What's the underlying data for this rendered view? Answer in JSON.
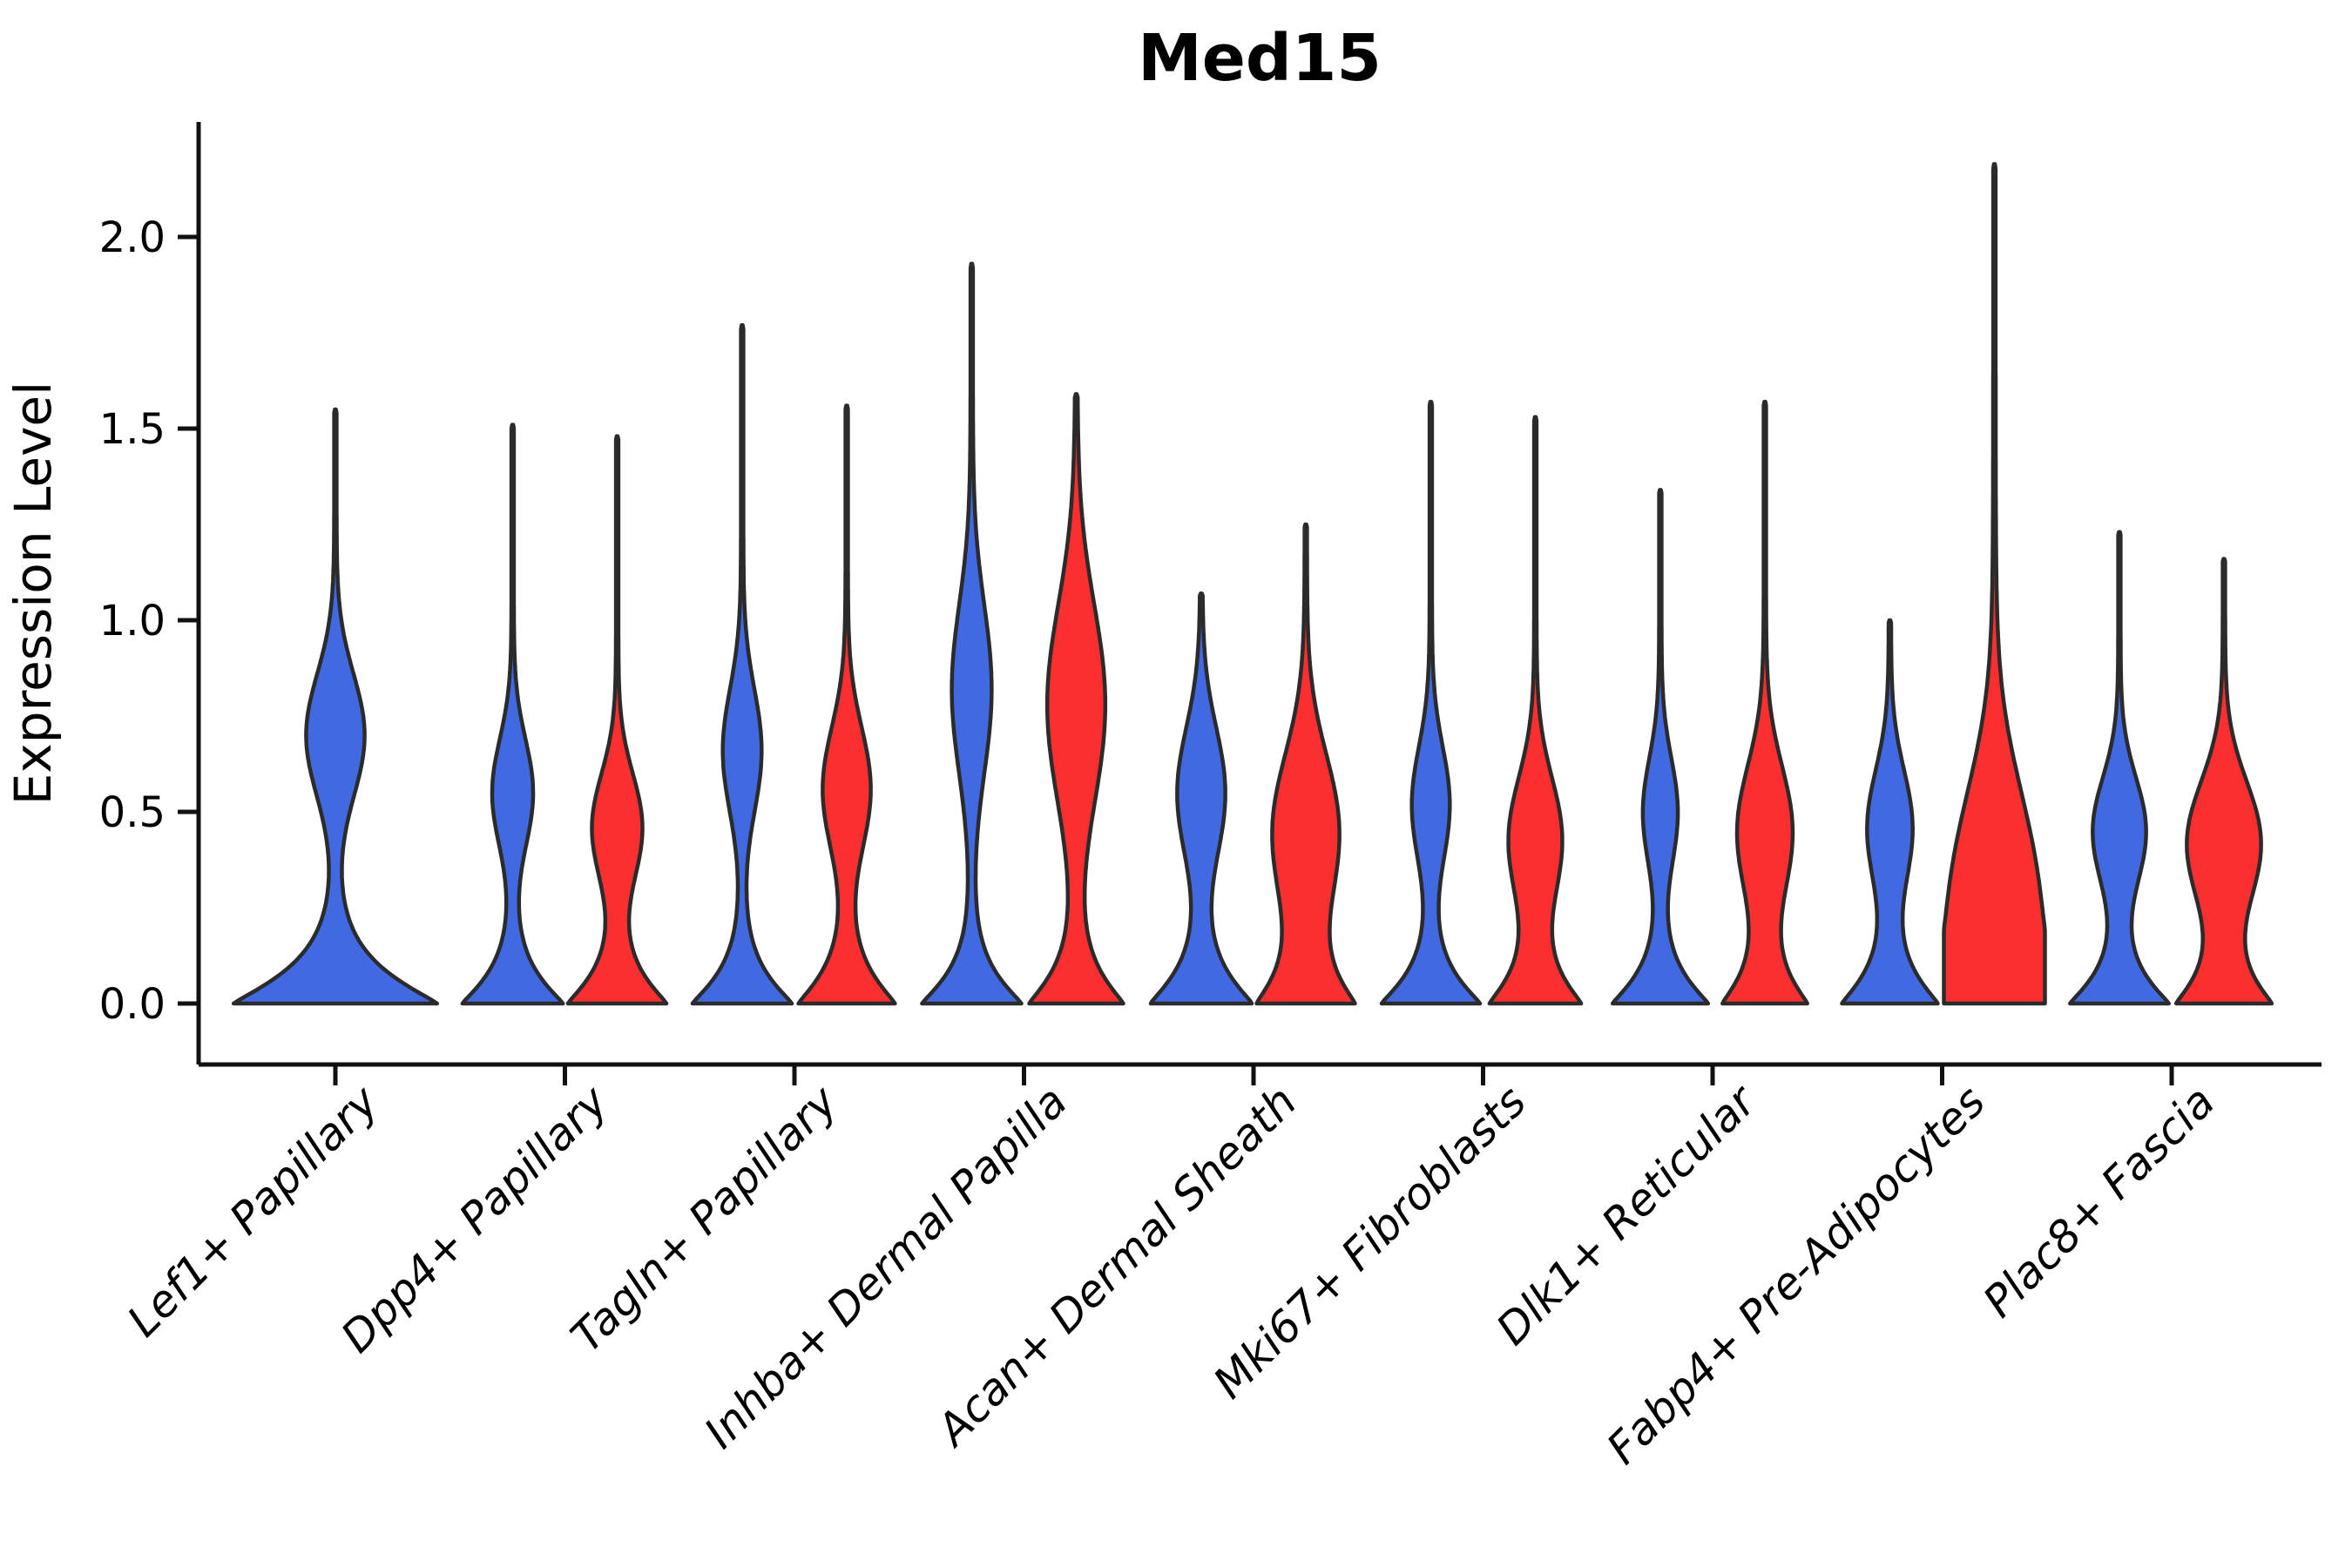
{
  "chart_data": {
    "type": "violin",
    "title": "Med15",
    "ylabel": "Expression Level",
    "xlabel": "",
    "grid": false,
    "legend": null,
    "ylim": [
      -0.16,
      2.3
    ],
    "yticks": [
      0.0,
      0.5,
      1.0,
      1.5,
      2.0
    ],
    "ytick_labels": [
      "0.0",
      "0.5",
      "1.0",
      "1.5",
      "2.0"
    ],
    "categories": [
      "Lef1+ Papillary",
      "Dpp4+ Papillary",
      "Tagln+ Papillary",
      "Inhba+ Dermal Papilla",
      "Acan+ Dermal Sheath",
      "Mki67+ Fibroblasts",
      "Dlk1+ Reticular",
      "Fabp4+ Pre-Adipocytes",
      "Plac8+ Fascia"
    ],
    "groups": [
      {
        "name": "group-blue",
        "color": "#4169E1"
      },
      {
        "name": "group-red",
        "color": "#FB2F2F"
      }
    ],
    "outline_color": "#2b2b2b",
    "axis_color": "#111111",
    "violins": [
      {
        "category": "Lef1+ Papillary",
        "series": [
          {
            "group": 0,
            "span": "full",
            "max": 1.55,
            "profile": {
              "base_w": 0.97,
              "base_s": 0.115,
              "mid_c": 0.7,
              "mid_s": 0.16,
              "mid_w": 0.27
            }
          }
        ]
      },
      {
        "category": "Dpp4+ Papillary",
        "series": [
          {
            "group": 0,
            "span": "half",
            "max": 1.51,
            "profile": {
              "base_w": 0.97,
              "base_s": 0.105,
              "mid_c": 0.55,
              "mid_s": 0.14,
              "mid_w": 0.38
            }
          },
          {
            "group": 1,
            "span": "half",
            "max": 1.48,
            "profile": {
              "base_w": 0.95,
              "base_s": 0.11,
              "mid_c": 0.46,
              "mid_s": 0.14,
              "mid_w": 0.47
            }
          }
        ]
      },
      {
        "category": "Tagln+ Papillary",
        "series": [
          {
            "group": 0,
            "span": "half",
            "max": 1.77,
            "profile": {
              "base_w": 0.96,
              "base_s": 0.105,
              "mid_c": 0.66,
              "mid_s": 0.16,
              "mid_w": 0.36
            }
          },
          {
            "group": 1,
            "span": "half",
            "max": 1.56,
            "profile": {
              "base_w": 0.93,
              "base_s": 0.115,
              "mid_c": 0.56,
              "mid_s": 0.16,
              "mid_w": 0.45
            }
          }
        ]
      },
      {
        "category": "Inhba+ Dermal Papilla",
        "series": [
          {
            "group": 0,
            "span": "half",
            "max": 1.93,
            "profile": {
              "base_w": 0.96,
              "base_s": 0.105,
              "mid_c": 0.82,
              "mid_s": 0.22,
              "mid_w": 0.37
            }
          },
          {
            "group": 1,
            "span": "half",
            "max": 1.59,
            "profile": {
              "base_w": 0.9,
              "base_s": 0.115,
              "mid_c": 0.78,
              "mid_s": 0.26,
              "mid_w": 0.55
            }
          }
        ]
      },
      {
        "category": "Acan+ Dermal Sheath",
        "series": [
          {
            "group": 0,
            "span": "half",
            "max": 1.07,
            "profile": {
              "base_w": 0.98,
              "base_s": 0.115,
              "mid_c": 0.55,
              "mid_s": 0.17,
              "mid_w": 0.45
            }
          },
          {
            "group": 1,
            "span": "half",
            "max": 1.25,
            "profile": {
              "base_w": 0.9,
              "base_s": 0.125,
              "mid_c": 0.45,
              "mid_s": 0.2,
              "mid_w": 0.63
            }
          }
        ]
      },
      {
        "category": "Mki67+ Fibroblasts",
        "series": [
          {
            "group": 0,
            "span": "half",
            "max": 1.57,
            "profile": {
              "base_w": 0.95,
              "base_s": 0.105,
              "mid_c": 0.52,
              "mid_s": 0.15,
              "mid_w": 0.35
            }
          },
          {
            "group": 1,
            "span": "half",
            "max": 1.53,
            "profile": {
              "base_w": 0.87,
              "base_s": 0.115,
              "mid_c": 0.43,
              "mid_s": 0.16,
              "mid_w": 0.5
            }
          }
        ]
      },
      {
        "category": "Dlk1+ Reticular",
        "series": [
          {
            "group": 0,
            "span": "half",
            "max": 1.34,
            "profile": {
              "base_w": 0.92,
              "base_s": 0.105,
              "mid_c": 0.5,
              "mid_s": 0.14,
              "mid_w": 0.32
            }
          },
          {
            "group": 1,
            "span": "half",
            "max": 1.57,
            "profile": {
              "base_w": 0.8,
              "base_s": 0.115,
              "mid_c": 0.45,
              "mid_s": 0.17,
              "mid_w": 0.52
            }
          }
        ]
      },
      {
        "category": "Fabp4+ Pre-Adipocytes",
        "series": [
          {
            "group": 0,
            "span": "half",
            "max": 1.0,
            "profile": {
              "base_w": 0.92,
              "base_s": 0.115,
              "mid_c": 0.46,
              "mid_s": 0.15,
              "mid_w": 0.42
            }
          },
          {
            "group": 1,
            "span": "half",
            "max": 2.19,
            "profile": {
              "base_w": 1.0,
              "base_s": 0.3,
              "mid_c": 0.35,
              "mid_s": 0.25,
              "mid_w": 0.52
            }
          }
        ]
      },
      {
        "category": "Plac8+ Fascia",
        "series": [
          {
            "group": 0,
            "span": "half",
            "max": 1.23,
            "profile": {
              "base_w": 0.95,
              "base_s": 0.105,
              "mid_c": 0.45,
              "mid_s": 0.14,
              "mid_w": 0.5
            }
          },
          {
            "group": 1,
            "span": "half",
            "max": 1.16,
            "profile": {
              "base_w": 0.9,
              "base_s": 0.115,
              "mid_c": 0.42,
              "mid_s": 0.16,
              "mid_w": 0.7
            }
          }
        ]
      }
    ]
  }
}
